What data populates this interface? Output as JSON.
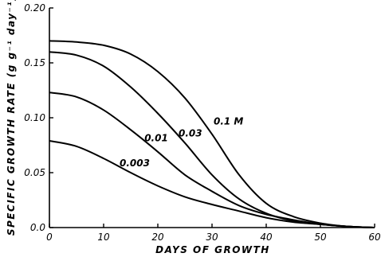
{
  "chart_data": {
    "type": "line",
    "title": "",
    "xlabel": "DAYS OF GROWTH",
    "ylabel": "SPECIFIC GROWTH RATE (g g⁻¹ day⁻¹)",
    "xlim": [
      0,
      60
    ],
    "ylim": [
      0,
      0.2
    ],
    "x_ticks": [
      0,
      10,
      20,
      30,
      40,
      50,
      60
    ],
    "x_tick_labels": [
      "0",
      "10",
      "20",
      "30",
      "40",
      "50",
      "60"
    ],
    "y_ticks": [
      0,
      0.05,
      0.1,
      0.15,
      0.2
    ],
    "y_tick_labels": [
      "0.0",
      "0.05",
      "0.10",
      "0.15",
      "0.20"
    ],
    "grid": false,
    "legend": "none",
    "series": [
      {
        "name": "0.1 M",
        "x": [
          0,
          5,
          10,
          15,
          20,
          25,
          30,
          35,
          40,
          45,
          50,
          55,
          60
        ],
        "y": [
          0.17,
          0.169,
          0.166,
          0.158,
          0.142,
          0.118,
          0.085,
          0.048,
          0.022,
          0.01,
          0.004,
          0.001,
          0.0
        ]
      },
      {
        "name": "0.03",
        "x": [
          0,
          5,
          10,
          15,
          20,
          25,
          30,
          35,
          40,
          45,
          50,
          55,
          60
        ],
        "y": [
          0.16,
          0.157,
          0.147,
          0.128,
          0.104,
          0.077,
          0.048,
          0.026,
          0.013,
          0.006,
          0.003,
          0.001,
          0.0
        ]
      },
      {
        "name": "0.01",
        "x": [
          0,
          5,
          10,
          15,
          20,
          25,
          30,
          35,
          40,
          45,
          50,
          55,
          60
        ],
        "y": [
          0.123,
          0.119,
          0.107,
          0.089,
          0.069,
          0.048,
          0.033,
          0.02,
          0.012,
          0.007,
          0.003,
          0.001,
          0.0
        ]
      },
      {
        "name": "0.003",
        "x": [
          0,
          5,
          10,
          15,
          20,
          25,
          30,
          35,
          40,
          45,
          50,
          55,
          60
        ],
        "y": [
          0.079,
          0.074,
          0.063,
          0.05,
          0.038,
          0.028,
          0.021,
          0.015,
          0.009,
          0.005,
          0.003,
          0.001,
          0.0
        ]
      }
    ],
    "curve_labels": [
      "0.1 M",
      "0.03",
      "0.01",
      "0.003"
    ]
  }
}
